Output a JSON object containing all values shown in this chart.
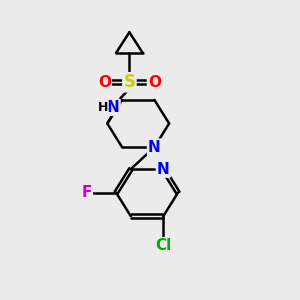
{
  "background_color": "#ebebeb",
  "bond_color": "#000000",
  "bond_width": 1.8,
  "atom_colors": {
    "S": "#cccc00",
    "O": "#ff0000",
    "N": "#0000ff",
    "F": "#cc00cc",
    "Cl": "#00aa00",
    "C": "#000000",
    "H": "#000000"
  },
  "figsize": [
    3.0,
    3.0
  ],
  "dpi": 100
}
